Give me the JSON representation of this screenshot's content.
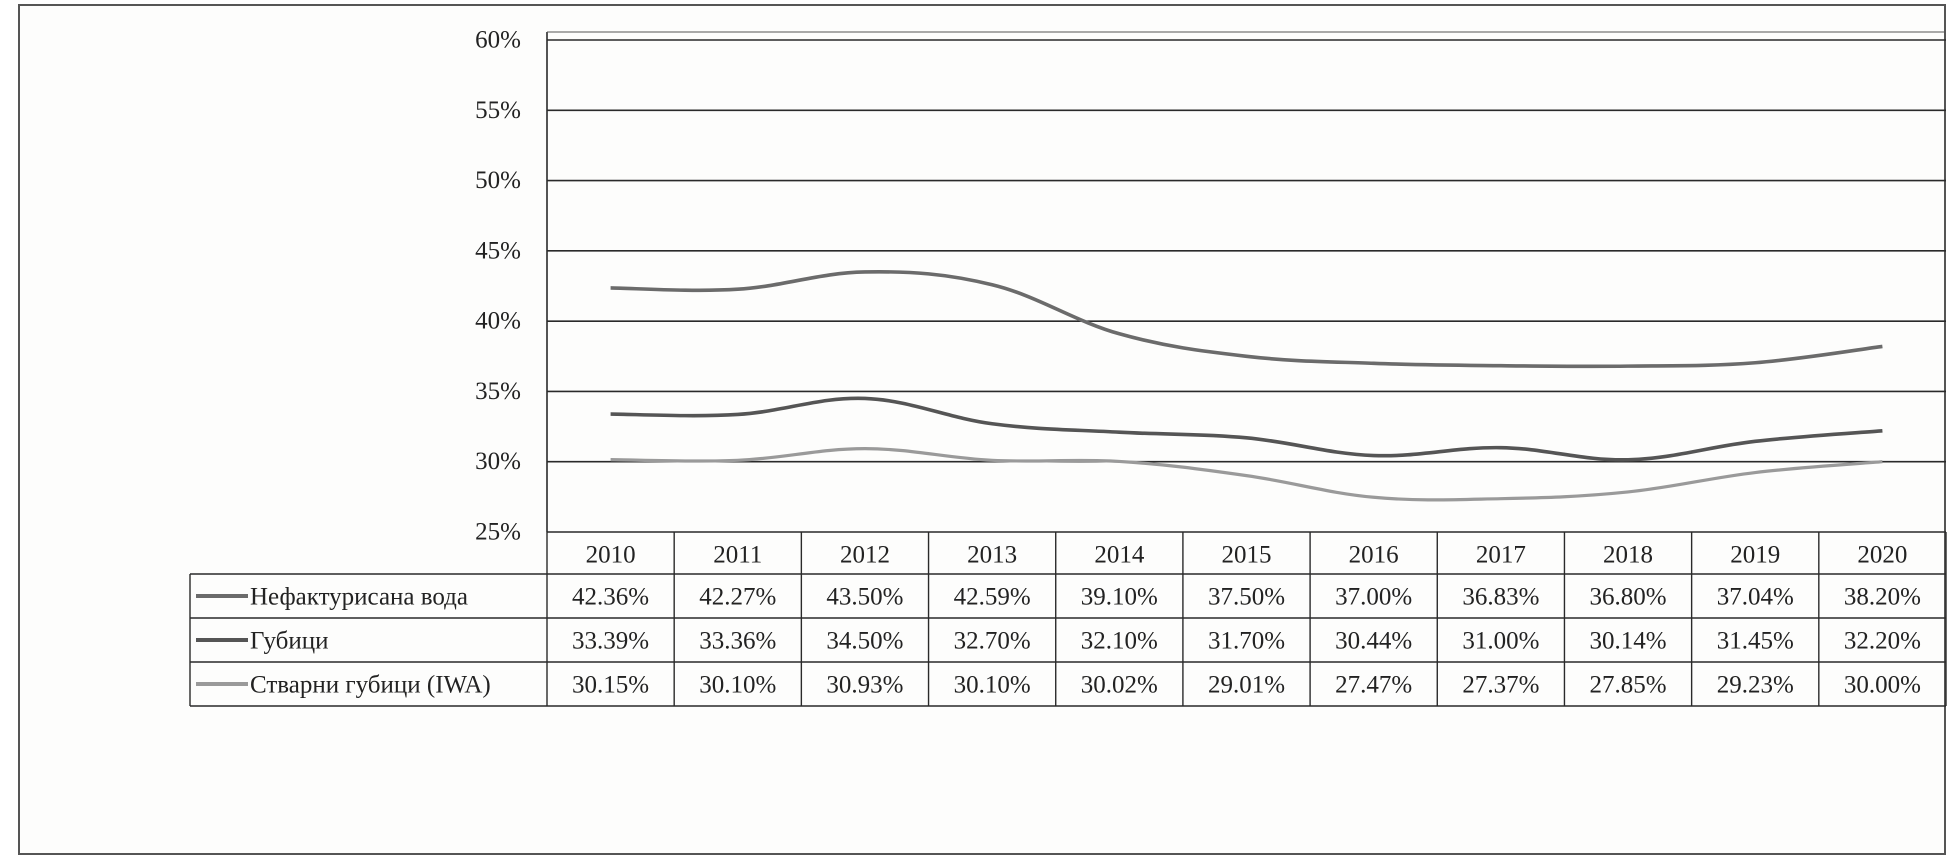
{
  "chart_data": {
    "type": "line",
    "title": "",
    "xlabel": "",
    "ylabel": "",
    "ylim": [
      25,
      60
    ],
    "y_ticks": [
      "60%",
      "55%",
      "50%",
      "45%",
      "40%",
      "35%",
      "30%",
      "25%"
    ],
    "y_tick_values": [
      60,
      55,
      50,
      45,
      40,
      35,
      30,
      25
    ],
    "grid": true,
    "legend": "data-table-below",
    "categories": [
      "2010",
      "2011",
      "2012",
      "2013",
      "2014",
      "2015",
      "2016",
      "2017",
      "2018",
      "2019",
      "2020"
    ],
    "series": [
      {
        "name": "Нефактурисана вода",
        "color": "#6b6b6b",
        "values": [
          42.36,
          42.27,
          43.5,
          42.59,
          39.1,
          37.5,
          37.0,
          36.83,
          36.8,
          37.04,
          38.2
        ],
        "labels": [
          "42.36%",
          "42.27%",
          "43.50%",
          "42.59%",
          "39.10%",
          "37.50%",
          "37.00%",
          "36.83%",
          "36.80%",
          "37.04%",
          "38.20%"
        ]
      },
      {
        "name": "Губици",
        "color": "#555555",
        "values": [
          33.39,
          33.36,
          34.5,
          32.7,
          32.1,
          31.7,
          30.44,
          31.0,
          30.14,
          31.45,
          32.2
        ],
        "labels": [
          "33.39%",
          "33.36%",
          "34.50%",
          "32.70%",
          "32.10%",
          "31.70%",
          "30.44%",
          "31.00%",
          "30.14%",
          "31.45%",
          "32.20%"
        ]
      },
      {
        "name": "Стварни губици (IWA)",
        "color": "#9a9a9a",
        "values": [
          30.15,
          30.1,
          30.93,
          30.1,
          30.02,
          29.01,
          27.47,
          27.37,
          27.85,
          29.23,
          30.0
        ],
        "labels": [
          "30.15%",
          "30.10%",
          "30.93%",
          "30.10%",
          "30.02%",
          "29.01%",
          "27.47%",
          "27.37%",
          "27.85%",
          "29.23%",
          "30.00%"
        ]
      }
    ]
  }
}
